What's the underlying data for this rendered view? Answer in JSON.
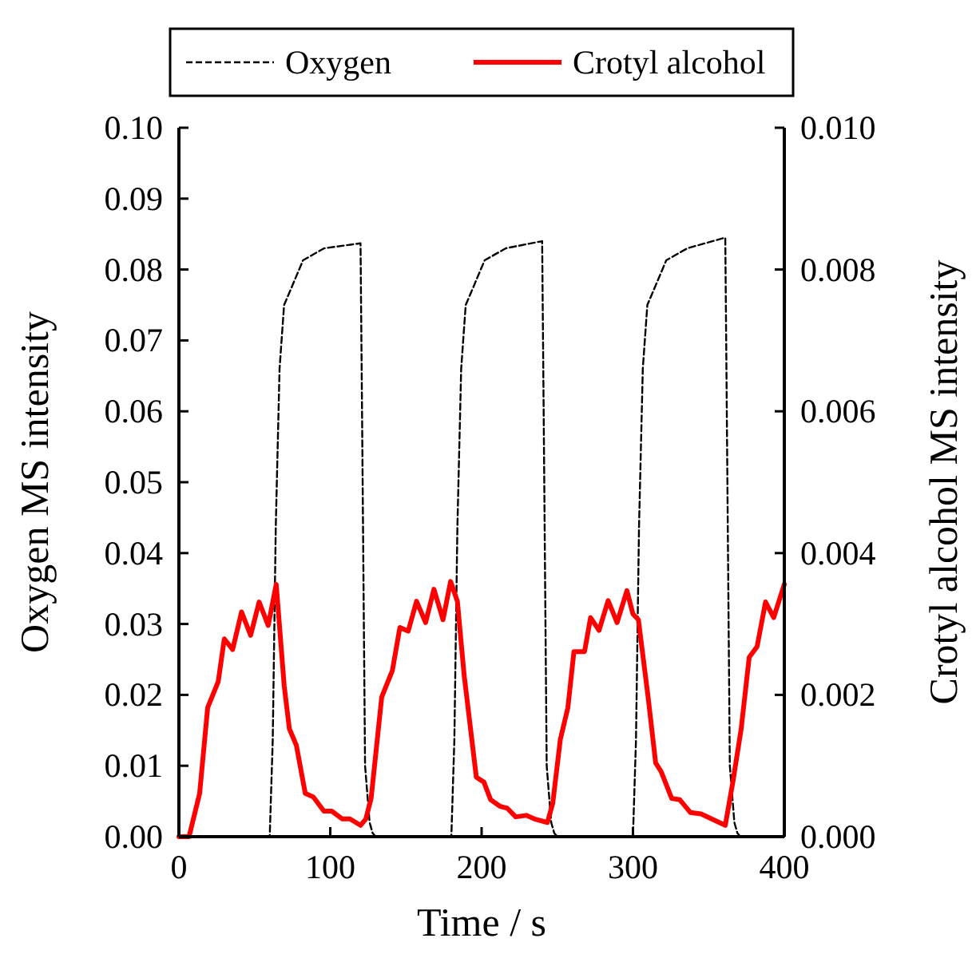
{
  "chart_data": {
    "type": "line",
    "xlabel": "Time / s",
    "ylabel": "Oxygen MS intensity",
    "y2label": "Crotyl alcohol MS intensity",
    "xlim": [
      0,
      400
    ],
    "xticks": [
      0,
      100,
      200,
      300,
      400
    ],
    "ylim": [
      0,
      0.1
    ],
    "yticks": [
      {
        "value": 0,
        "label": "0.00"
      },
      {
        "value": 0.01,
        "label": "0.01"
      },
      {
        "value": 0.02,
        "label": "0.02"
      },
      {
        "value": 0.03,
        "label": "0.03"
      },
      {
        "value": 0.04,
        "label": "0.04"
      },
      {
        "value": 0.05,
        "label": "0.05"
      },
      {
        "value": 0.06,
        "label": "0.06"
      },
      {
        "value": 0.07,
        "label": "0.07"
      },
      {
        "value": 0.08,
        "label": "0.08"
      },
      {
        "value": 0.09,
        "label": "0.09"
      },
      {
        "value": 0.1,
        "label": "0.10"
      }
    ],
    "y2lim": [
      0,
      0.01
    ],
    "y2ticks": [
      {
        "value": 0,
        "label": "0.000"
      },
      {
        "value": 0.002,
        "label": "0.002"
      },
      {
        "value": 0.004,
        "label": "0.004"
      },
      {
        "value": 0.006,
        "label": "0.006"
      },
      {
        "value": 0.008,
        "label": "0.008"
      },
      {
        "value": 0.01,
        "label": "0.010"
      }
    ],
    "legend": "top",
    "grid": false,
    "marker": "none",
    "series": [
      {
        "name": "Oxygen",
        "color": "#000000",
        "line_style": "dashed",
        "x": [
          0,
          60,
          62,
          64,
          66.5,
          69.5,
          73.5,
          82,
          96,
          120,
          121,
          123,
          126,
          128,
          130,
          180,
          182,
          184,
          186.5,
          189.5,
          193.5,
          202,
          216,
          240,
          241,
          243,
          246,
          248,
          250,
          300,
          302,
          304,
          306.5,
          309.5,
          313.5,
          322,
          336,
          361,
          362,
          364,
          367,
          369,
          371,
          400
        ],
        "values": [
          0,
          0,
          0.0137,
          0.0437,
          0.066,
          0.075,
          0.077,
          0.0813,
          0.083,
          0.0837,
          0.06,
          0.01,
          0.002,
          0.0005,
          0,
          0,
          0.0137,
          0.0437,
          0.066,
          0.075,
          0.077,
          0.0813,
          0.083,
          0.084,
          0.06,
          0.01,
          0.002,
          0.0005,
          0,
          0,
          0.0137,
          0.0437,
          0.066,
          0.075,
          0.077,
          0.0813,
          0.083,
          0.0845,
          0.06,
          0.01,
          0.002,
          0.0005,
          0,
          0
        ]
      },
      {
        "name": "Crotyl alcohol",
        "color": "#ff0000",
        "axis": "y2",
        "line_style": "solid",
        "x": [
          0,
          6.7,
          13.7,
          19,
          26,
          30,
          35.5,
          41.4,
          47.4,
          53,
          59,
          64.3,
          69.6,
          73,
          77.6,
          83.5,
          88.8,
          95.8,
          101,
          108,
          113,
          120,
          123.5,
          127,
          134,
          141,
          146,
          151.5,
          157,
          163,
          168.5,
          174.5,
          179.5,
          184,
          188.5,
          196.5,
          201.5,
          206,
          212,
          217,
          222.5,
          229.5,
          235,
          243.5,
          247,
          252,
          257,
          261,
          268,
          272,
          277.6,
          283.6,
          289.5,
          296,
          300,
          303.6,
          310,
          315,
          318.6,
          325.6,
          331,
          338,
          345,
          352,
          361,
          366,
          371.5,
          376.8,
          382,
          387.6,
          393,
          400
        ],
        "values": [
          0,
          0,
          0.00061,
          0.00182,
          0.00219,
          0.00279,
          0.00264,
          0.00317,
          0.00284,
          0.00331,
          0.00298,
          0.00356,
          0.00212,
          0.00152,
          0.00129,
          0.00061,
          0.00056,
          0.00036,
          0.00036,
          0.00025,
          0.00025,
          0.00016,
          0.00025,
          0.00054,
          0.00197,
          0.00234,
          0.00295,
          0.0029,
          0.00332,
          0.00302,
          0.00349,
          0.00306,
          0.0036,
          0.00332,
          0.00227,
          0.00084,
          0.00077,
          0.00052,
          0.00043,
          0.0004,
          0.00028,
          0.0003,
          0.00025,
          0.0002,
          0.00047,
          0.00137,
          0.00182,
          0.00261,
          0.00261,
          0.00309,
          0.00291,
          0.00333,
          0.00302,
          0.00347,
          0.00314,
          0.00306,
          0.00197,
          0.00104,
          0.00092,
          0.00054,
          0.00052,
          0.00034,
          0.00032,
          0.00025,
          0.00016,
          0.00077,
          0.00152,
          0.00253,
          0.00268,
          0.00331,
          0.00309,
          0.00356
        ]
      }
    ]
  }
}
